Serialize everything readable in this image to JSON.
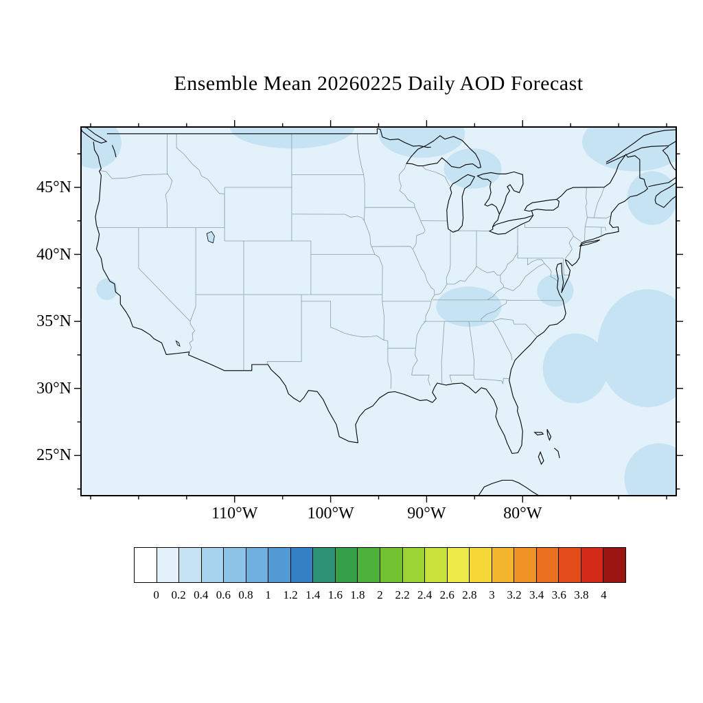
{
  "title": "Ensemble Mean 20260225 Daily AOD Forecast",
  "axes": {
    "lat": [
      {
        "label": "45°N",
        "value": 45
      },
      {
        "label": "40°N",
        "value": 40
      },
      {
        "label": "35°N",
        "value": 35
      },
      {
        "label": "30°N",
        "value": 30
      },
      {
        "label": "25°N",
        "value": 25
      }
    ],
    "lon": [
      {
        "label": "110°W",
        "value": -110
      },
      {
        "label": "100°W",
        "value": -100
      },
      {
        "label": "90°W",
        "value": -90
      },
      {
        "label": "80°W",
        "value": -80
      }
    ]
  },
  "colorbar": {
    "labels": [
      "0",
      "0.2",
      "0.4",
      "0.6",
      "0.8",
      "1",
      "1.2",
      "1.4",
      "1.6",
      "1.8",
      "2",
      "2.2",
      "2.4",
      "2.6",
      "2.8",
      "3",
      "3.2",
      "3.4",
      "3.6",
      "3.8",
      "4"
    ],
    "colors": [
      "#FFFFFF",
      "#E2F1FA",
      "#C6E3F4",
      "#A8D3EE",
      "#8CC3E7",
      "#6FB0DE",
      "#519AD3",
      "#3380C4",
      "#2E9276",
      "#35A048",
      "#4DB03A",
      "#73C232",
      "#9CD433",
      "#C8E23B",
      "#EDEA49",
      "#F6D738",
      "#F4B52F",
      "#F09327",
      "#EB701F",
      "#E34D1B",
      "#D32B18",
      "#9A1511"
    ]
  },
  "style_colors": {
    "state_borders": "#8B9DA9",
    "coastlines": "#000000",
    "frame": "#000000"
  },
  "chart_data": {
    "type": "heatmap",
    "title": "Ensemble Mean 20260225 Daily AOD Forecast",
    "variable": "AOD",
    "date": "20260225",
    "region": "Continental United States and surroundings",
    "x_tick_labels": [
      "110°W",
      "100°W",
      "90°W",
      "80°W"
    ],
    "y_tick_labels": [
      "45°N",
      "40°N",
      "35°N",
      "30°N",
      "25°N"
    ],
    "colorbar_levels": [
      0,
      0.2,
      0.4,
      0.6,
      0.8,
      1,
      1.2,
      1.4,
      1.6,
      1.8,
      2,
      2.2,
      2.4,
      2.6,
      2.8,
      3,
      3.2,
      3.4,
      3.6,
      3.8,
      4
    ],
    "legend_position": "bottom",
    "field_summary": "AOD is low (0-0.2) across nearly the entire domain, with scattered areas of 0.2-0.4 over the Pacific Northwest, south-central Canada, the upper Great Lakes, the Tennessee-Kentucky region, the Northeast / Canadian Maritimes, the western Atlantic off the Southeast coast, and the far southeast corner.",
    "aod_patches": [
      {
        "lon": -124.6,
        "lat": 48.3,
        "rlon": 2.8,
        "rlat": 1.9,
        "range": "0.2-0.4"
      },
      {
        "lon": -123.3,
        "lat": 37.4,
        "rlon": 1.1,
        "rlat": 0.8,
        "range": "0.2-0.4"
      },
      {
        "lon": -104.0,
        "lat": 49.5,
        "rlon": 6.5,
        "rlat": 1.6,
        "range": "0.2-0.4"
      },
      {
        "lon": -90.5,
        "lat": 49.0,
        "rlon": 4.5,
        "rlat": 1.8,
        "range": "0.2-0.4"
      },
      {
        "lon": -85.2,
        "lat": 46.4,
        "rlon": 3.0,
        "rlat": 1.5,
        "range": "0.2-0.4"
      },
      {
        "lon": -68.3,
        "lat": 48.4,
        "rlon": 5.5,
        "rlat": 2.2,
        "range": "0.2-0.4"
      },
      {
        "lon": -66.5,
        "lat": 44.2,
        "rlon": 2.6,
        "rlat": 2.0,
        "range": "0.2-0.4"
      },
      {
        "lon": -67.0,
        "lat": 33.0,
        "rlon": 5.2,
        "rlat": 4.4,
        "range": "0.2-0.4"
      },
      {
        "lon": -74.5,
        "lat": 31.5,
        "rlon": 3.4,
        "rlat": 2.6,
        "range": "0.2-0.4"
      },
      {
        "lon": -85.6,
        "lat": 36.1,
        "rlon": 3.4,
        "rlat": 1.5,
        "range": "0.2-0.4"
      },
      {
        "lon": -76.6,
        "lat": 37.3,
        "rlon": 1.9,
        "rlat": 1.2,
        "range": "0.2-0.4"
      },
      {
        "lon": -65.8,
        "lat": 23.3,
        "rlon": 3.6,
        "rlat": 2.6,
        "range": "0.2-0.4"
      }
    ]
  }
}
